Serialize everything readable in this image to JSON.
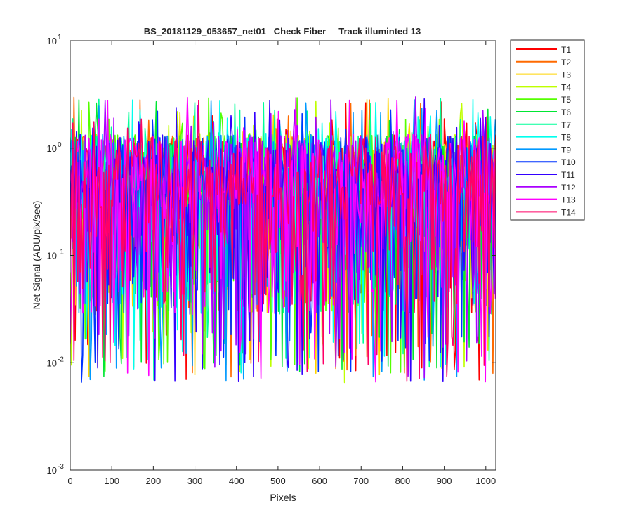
{
  "chart_data": {
    "type": "line",
    "title": "BS_20181129_053657_net01   Check Fiber     Track illuminted 13",
    "xlabel": "Pixels",
    "ylabel": "Net Signal (ADU/pix/sec)",
    "xlim": [
      0,
      1024
    ],
    "ylim": [
      0.001,
      10
    ],
    "yscale": "log",
    "grid": false,
    "legend_location": "outside-top-right",
    "x_ticks": [
      {
        "value": 0,
        "label": "0"
      },
      {
        "value": 100,
        "label": "100"
      },
      {
        "value": 200,
        "label": "200"
      },
      {
        "value": 300,
        "label": "300"
      },
      {
        "value": 400,
        "label": "400"
      },
      {
        "value": 500,
        "label": "500"
      },
      {
        "value": 600,
        "label": "600"
      },
      {
        "value": 700,
        "label": "700"
      },
      {
        "value": 800,
        "label": "800"
      },
      {
        "value": 900,
        "label": "900"
      },
      {
        "value": 1000,
        "label": "1000"
      }
    ],
    "y_ticks": [
      {
        "value": 0.001,
        "base": "10",
        "exp": "-3"
      },
      {
        "value": 0.01,
        "base": "10",
        "exp": "-2"
      },
      {
        "value": 0.1,
        "base": "10",
        "exp": "-1"
      },
      {
        "value": 1,
        "base": "10",
        "exp": "0"
      },
      {
        "value": 10,
        "base": "10",
        "exp": "1"
      }
    ],
    "signal_level": {
      "typical": 0.6,
      "max": 3.0,
      "min": 0.0065
    },
    "series": [
      {
        "name": "T1",
        "color": "#ff0000"
      },
      {
        "name": "T2",
        "color": "#ff6a00"
      },
      {
        "name": "T3",
        "color": "#ffd400"
      },
      {
        "name": "T4",
        "color": "#bfff00"
      },
      {
        "name": "T5",
        "color": "#55ff00"
      },
      {
        "name": "T6",
        "color": "#00e633"
      },
      {
        "name": "T7",
        "color": "#00ff99"
      },
      {
        "name": "T8",
        "color": "#00ffee"
      },
      {
        "name": "T9",
        "color": "#0099ff"
      },
      {
        "name": "T10",
        "color": "#0033ff"
      },
      {
        "name": "T11",
        "color": "#3300ff"
      },
      {
        "name": "T12",
        "color": "#aa00ff"
      },
      {
        "name": "T13",
        "color": "#ff00ff"
      },
      {
        "name": "T14",
        "color": "#ff0066"
      }
    ]
  }
}
